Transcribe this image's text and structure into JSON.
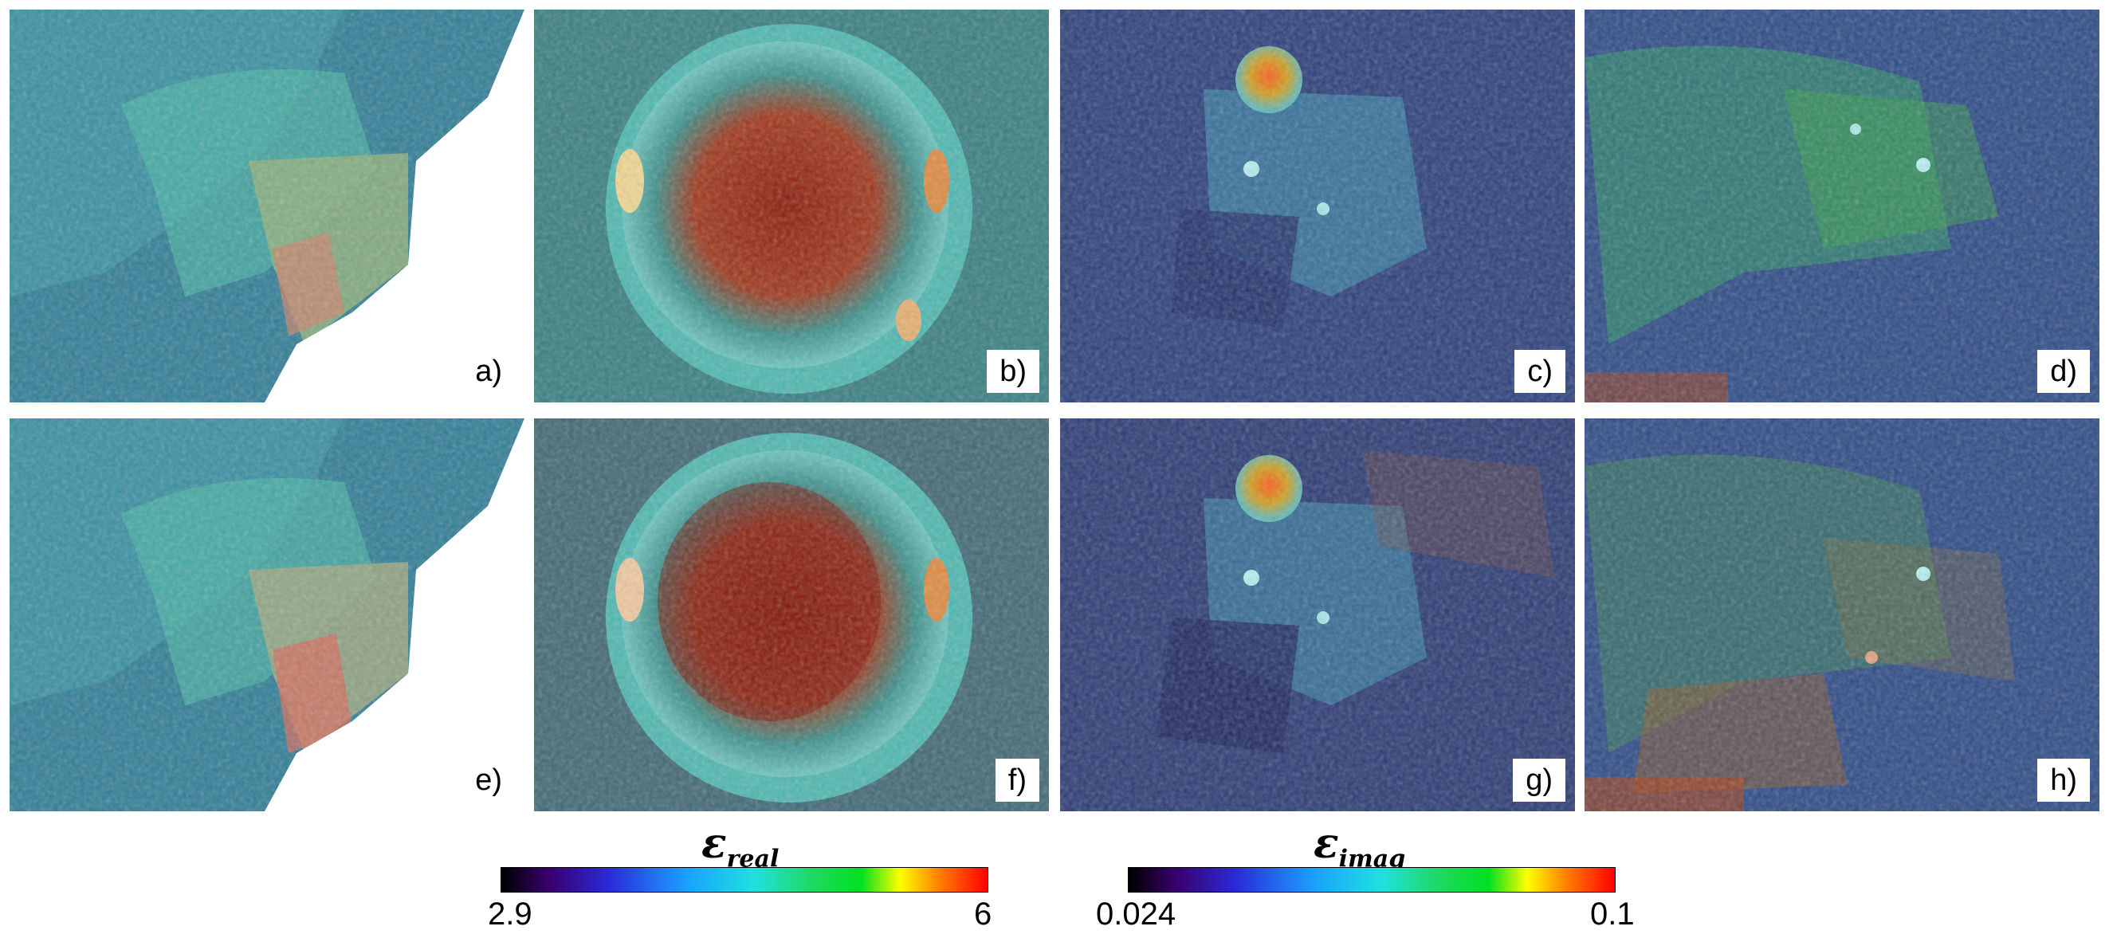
{
  "panels": [
    {
      "label": "a)"
    },
    {
      "label": "b)"
    },
    {
      "label": "c)"
    },
    {
      "label": "d)"
    },
    {
      "label": "e)"
    },
    {
      "label": "f)"
    },
    {
      "label": "g)"
    },
    {
      "label": "h)"
    }
  ],
  "colorbars": {
    "real": {
      "symbol": "ε",
      "subscript": "real",
      "min": "2.9",
      "max": "6"
    },
    "imag": {
      "symbol": "ε",
      "subscript": "imag",
      "min": "0.024",
      "max": "0.1"
    }
  },
  "colors": {
    "colormap": [
      "#000000",
      "#3a0070",
      "#2a2ad6",
      "#1aa0ff",
      "#20e0e0",
      "#20d860",
      "#00e020",
      "#ffff00",
      "#ff8000",
      "#ff0000"
    ]
  }
}
